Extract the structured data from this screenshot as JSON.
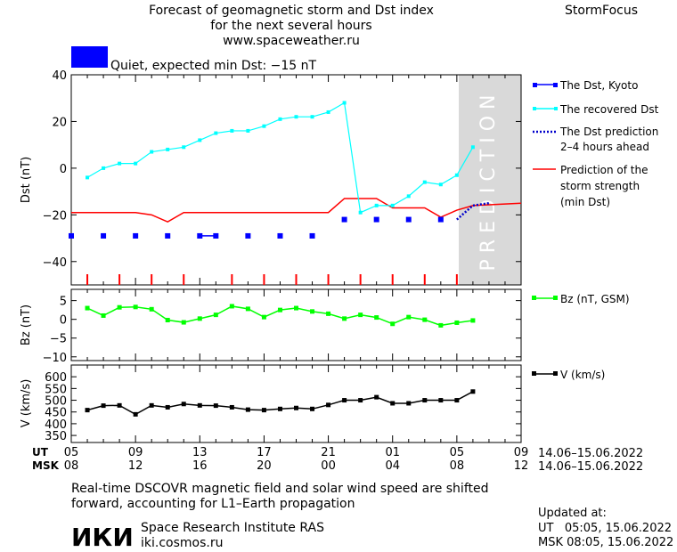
{
  "header": {
    "title_lines": [
      "Forecast of geomagnetic storm and Dst index",
      "for the next several hours",
      "www.spaceweather.ru"
    ],
    "brand": "StormFocus",
    "status_text": "Quiet, expected min Dst: −15 nT",
    "status_color": "#0000ff"
  },
  "panels": {
    "prediction_label": "PREDICTION"
  },
  "legend": {
    "dst_kyoto": "The Dst, Kyoto",
    "recovered": "The recovered Dst",
    "prediction_lines": [
      "The Dst prediction",
      "2–4 hours ahead"
    ],
    "strength_lines": [
      "Prediction of the",
      "storm strength",
      "(min Dst)"
    ],
    "bz": "Bz (nT, GSM)",
    "v": "V (km/s)"
  },
  "time_axis": {
    "ut_label": "UT",
    "msk_label": "MSK",
    "ut_ticks": [
      "05",
      "09",
      "13",
      "17",
      "21",
      "01",
      "05",
      "09"
    ],
    "msk_ticks": [
      "08",
      "12",
      "16",
      "20",
      "00",
      "04",
      "08",
      "12"
    ],
    "date_range_ut": "14.06–15.06.2022",
    "date_range_msk": "14.06–15.06.2022"
  },
  "footer": {
    "note_lines": [
      "Real-time DSCOVR magnetic field and solar wind speed are shifted",
      "forward, accounting for L1–Earth propagation"
    ],
    "logo": "ИКИ",
    "institute": "Space Research Institute RAS",
    "site": "iki.cosmos.ru",
    "updated_label": "Updated at:",
    "updated_ut": "UT   05:05, 15.06.2022",
    "updated_msk": "MSK 08:05, 15.06.2022"
  },
  "chart_data": [
    {
      "type": "line",
      "ylabel": "Dst (nT)",
      "xlabel": "UT hours, 14.06–15.06.2022",
      "xlim": [
        5,
        33
      ],
      "ylim": [
        -50,
        40
      ],
      "yticks": [
        40,
        20,
        0,
        -20,
        -40
      ],
      "prediction_region": [
        29,
        33
      ],
      "series": [
        {
          "name": "The Dst, Kyoto",
          "color": "#0000ff",
          "style": "squares",
          "points": [
            [
              5,
              -29
            ],
            [
              7,
              -29
            ],
            [
              9,
              -29
            ],
            [
              11,
              -29
            ],
            [
              13,
              -29
            ],
            [
              14,
              -29
            ],
            [
              16,
              -29
            ],
            [
              18,
              -29
            ],
            [
              20,
              -29
            ],
            [
              22,
              -22
            ],
            [
              24,
              -22
            ],
            [
              26,
              -22
            ],
            [
              28,
              -22
            ]
          ],
          "segments": [
            [
              13,
              14
            ]
          ]
        },
        {
          "name": "The recovered Dst",
          "color": "#00ffff",
          "style": "line-markers",
          "points": [
            [
              6,
              -4
            ],
            [
              7,
              0
            ],
            [
              8,
              2
            ],
            [
              9,
              2
            ],
            [
              10,
              7
            ],
            [
              11,
              8
            ],
            [
              12,
              9
            ],
            [
              13,
              12
            ],
            [
              14,
              15
            ],
            [
              15,
              16
            ],
            [
              16,
              16
            ],
            [
              17,
              18
            ],
            [
              18,
              21
            ],
            [
              19,
              22
            ],
            [
              20,
              22
            ],
            [
              21,
              24
            ],
            [
              22,
              28
            ],
            [
              23,
              -19
            ],
            [
              24,
              -16
            ],
            [
              25,
              -16
            ],
            [
              26,
              -12
            ],
            [
              27,
              -6
            ],
            [
              28,
              -7
            ],
            [
              29,
              -3
            ],
            [
              30,
              9
            ]
          ]
        },
        {
          "name": "The Dst prediction 2–4 hours ahead",
          "color": "#0000cc",
          "style": "dotted",
          "points": [
            [
              29,
              -22
            ],
            [
              30,
              -16
            ],
            [
              31,
              -15
            ]
          ]
        },
        {
          "name": "Prediction of the storm strength (min Dst)",
          "color": "#ff0000",
          "style": "line",
          "points": [
            [
              5,
              -19
            ],
            [
              9,
              -19
            ],
            [
              10,
              -20
            ],
            [
              11,
              -23
            ],
            [
              12,
              -19
            ],
            [
              21,
              -19
            ],
            [
              22,
              -13
            ],
            [
              24,
              -13
            ],
            [
              25,
              -17
            ],
            [
              26,
              -17
            ],
            [
              27,
              -17
            ],
            [
              28,
              -21
            ],
            [
              29,
              -18
            ],
            [
              30,
              -16
            ],
            [
              33,
              -15
            ]
          ]
        },
        {
          "name": "storm level markers",
          "color": "#ff0000",
          "style": "ticks",
          "x": [
            6,
            8,
            10,
            12,
            15,
            17,
            19,
            21,
            23,
            25,
            27,
            29
          ]
        }
      ]
    },
    {
      "type": "line",
      "ylabel": "Bz (nT)",
      "xlim": [
        5,
        33
      ],
      "ylim": [
        -11,
        8
      ],
      "yticks": [
        5,
        0,
        -5,
        -10
      ],
      "series": [
        {
          "name": "Bz (nT, GSM)",
          "color": "#00ff00",
          "points": [
            [
              6,
              3
            ],
            [
              7,
              1
            ],
            [
              8,
              3.2
            ],
            [
              9,
              3.3
            ],
            [
              10,
              2.7
            ],
            [
              11,
              -0.2
            ],
            [
              12,
              -0.8
            ],
            [
              13,
              0.2
            ],
            [
              14,
              1.2
            ],
            [
              15,
              3.5
            ],
            [
              16,
              2.8
            ],
            [
              17,
              0.6
            ],
            [
              18,
              2.5
            ],
            [
              19,
              3
            ],
            [
              20,
              2.1
            ],
            [
              21,
              1.5
            ],
            [
              22,
              0.2
            ],
            [
              23,
              1.2
            ],
            [
              24,
              0.5
            ],
            [
              25,
              -1.2
            ],
            [
              26,
              0.6
            ],
            [
              27,
              -0.1
            ],
            [
              28,
              -1.6
            ],
            [
              29,
              -0.9
            ],
            [
              30,
              -0.3
            ]
          ]
        }
      ]
    },
    {
      "type": "line",
      "ylabel": "V (km/s)",
      "xlim": [
        5,
        33
      ],
      "ylim": [
        320,
        650
      ],
      "yticks": [
        600,
        550,
        500,
        450,
        400,
        350
      ],
      "series": [
        {
          "name": "V (km/s)",
          "color": "#000000",
          "points": [
            [
              6,
              458
            ],
            [
              7,
              477
            ],
            [
              8,
              478
            ],
            [
              9,
              440
            ],
            [
              10,
              478
            ],
            [
              11,
              470
            ],
            [
              12,
              484
            ],
            [
              13,
              478
            ],
            [
              14,
              477
            ],
            [
              15,
              470
            ],
            [
              16,
              460
            ],
            [
              17,
              458
            ],
            [
              18,
              463
            ],
            [
              19,
              467
            ],
            [
              20,
              463
            ],
            [
              21,
              480
            ],
            [
              22,
              500
            ],
            [
              23,
              500
            ],
            [
              24,
              513
            ],
            [
              25,
              487
            ],
            [
              26,
              487
            ],
            [
              27,
              500
            ],
            [
              28,
              500
            ],
            [
              29,
              500
            ],
            [
              30,
              537
            ]
          ]
        }
      ]
    }
  ]
}
